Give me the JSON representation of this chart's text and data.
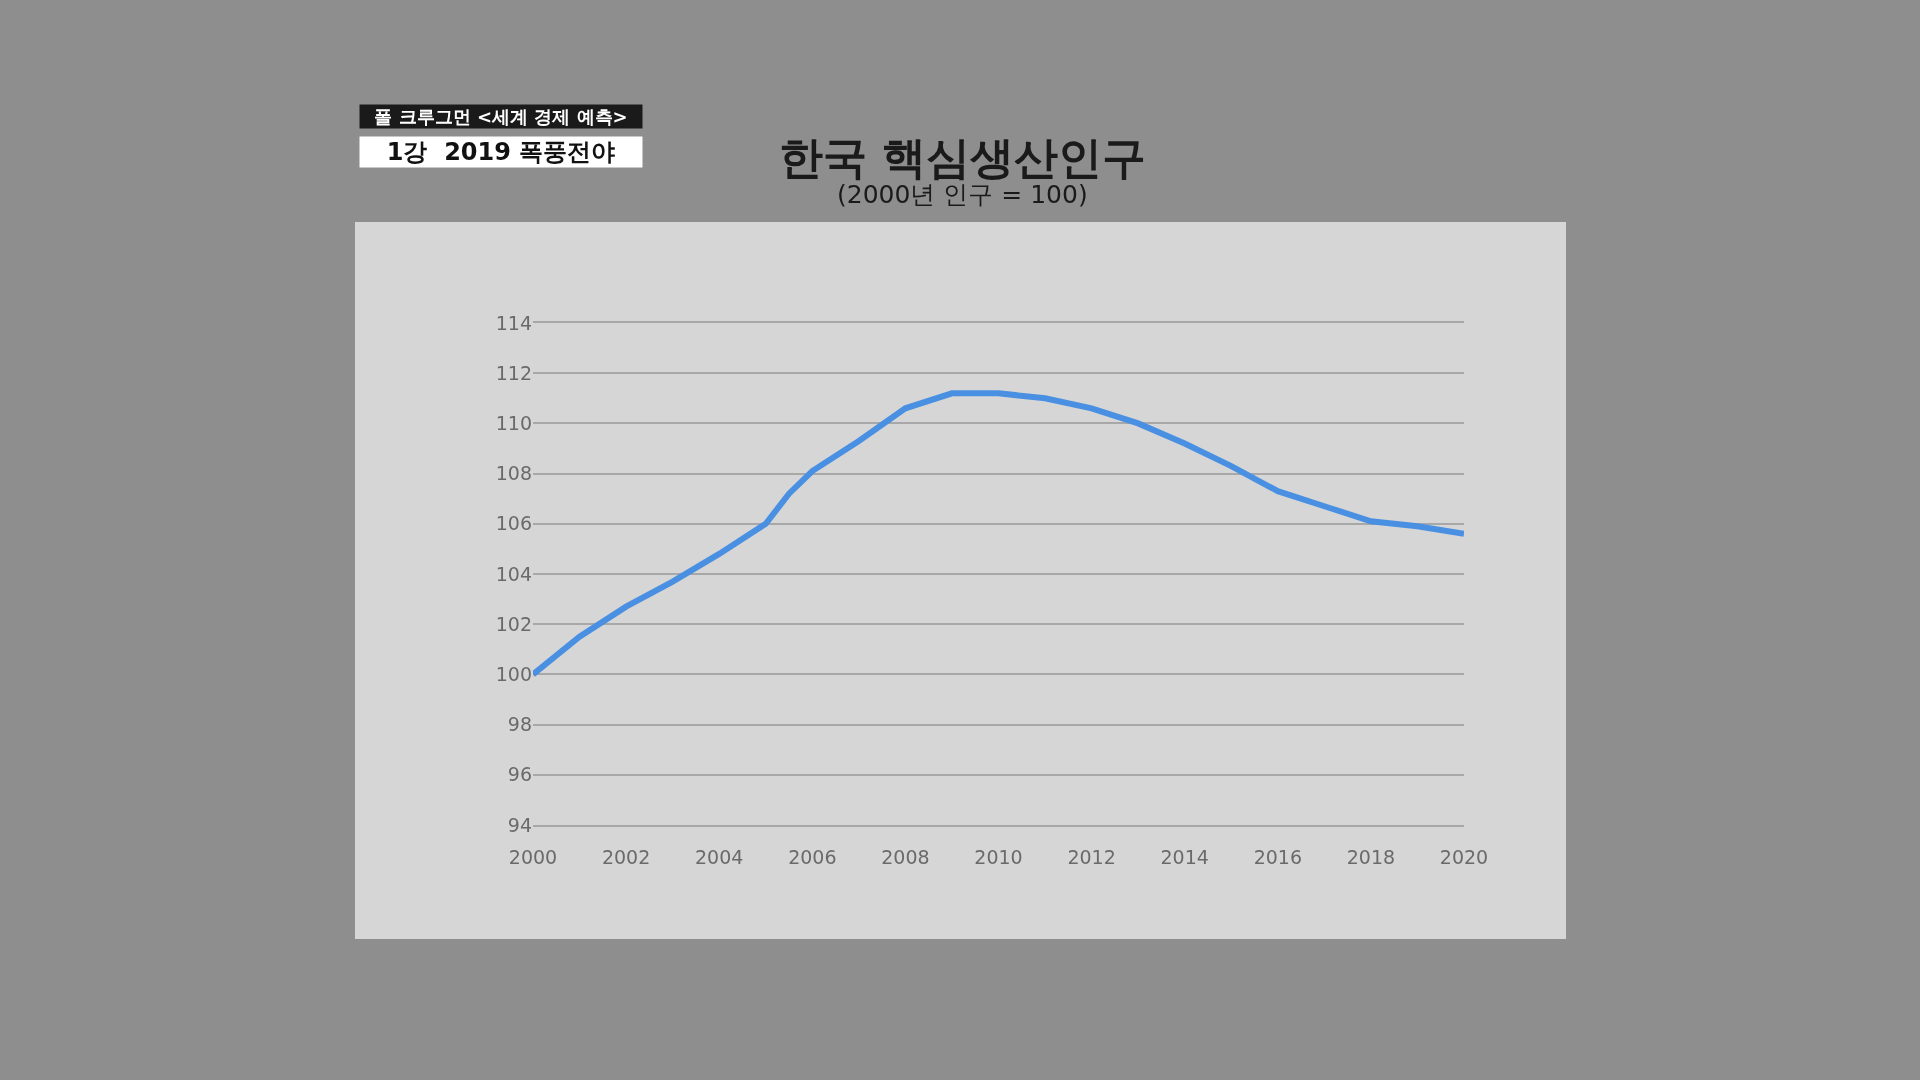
{
  "chart_data": {
    "type": "line",
    "title": "한국 핵심생산인구",
    "subtitle": "(2000년 인구 = 100)",
    "annotations": [
      "폴 크루그먼 <세계 경제 예측>",
      "1강  2019 폭풍전야"
    ],
    "x": [
      2000,
      2001,
      2002,
      2003,
      2004,
      2005,
      2005.5,
      2006,
      2007,
      2008,
      2009,
      2010,
      2011,
      2012,
      2013,
      2014,
      2015,
      2016,
      2017,
      2018,
      2019,
      2020
    ],
    "series": [
      {
        "color": "#4a90e2",
        "values": [
          100.0,
          101.5,
          102.7,
          103.7,
          104.8,
          106.0,
          107.2,
          108.1,
          109.3,
          110.6,
          111.2,
          111.2,
          111.0,
          110.6,
          110.0,
          109.2,
          108.3,
          107.3,
          106.7,
          106.1,
          105.9,
          105.6
        ]
      }
    ],
    "xlim": [
      2000,
      2020
    ],
    "xticks": [
      2000,
      2002,
      2004,
      2006,
      2008,
      2010,
      2012,
      2014,
      2016,
      2018,
      2020
    ],
    "ylim": [
      94,
      114
    ],
    "yticks": [
      94,
      96,
      98,
      100,
      102,
      104,
      106,
      108,
      110,
      112,
      114
    ],
    "grid": "y",
    "marker": "none",
    "line_style": "solid"
  }
}
